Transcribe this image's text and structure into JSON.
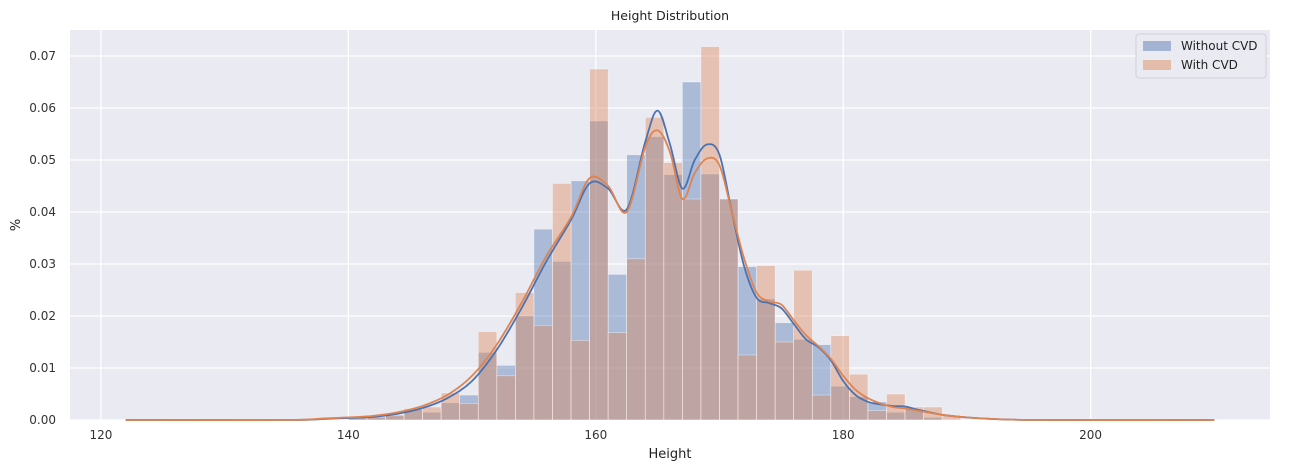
{
  "chart_data": {
    "type": "histogram",
    "title": "Height Distribution",
    "xlabel": "Height",
    "ylabel": "%",
    "xlim": [
      117.5,
      214.5
    ],
    "ylim": [
      0,
      0.075
    ],
    "xticks": [
      120,
      140,
      160,
      180,
      200
    ],
    "xtick_labels": [
      "120",
      "140",
      "160",
      "180",
      "200"
    ],
    "yticks": [
      0.0,
      0.01,
      0.02,
      0.03,
      0.04,
      0.05,
      0.06,
      0.07
    ],
    "ytick_labels": [
      "0.00",
      "0.01",
      "0.02",
      "0.03",
      "0.04",
      "0.05",
      "0.06",
      "0.07"
    ],
    "grid": true,
    "background_color": "#eaeaf2",
    "legend": {
      "position": "top-right"
    },
    "series": [
      {
        "name": "Without CVD",
        "color": "#4c72b0",
        "bars": [
          [
            140.0,
            141.5,
            0.0004
          ],
          [
            141.5,
            143.0,
            0.0005
          ],
          [
            143.0,
            144.5,
            0.0008
          ],
          [
            144.5,
            146.0,
            0.002
          ],
          [
            146.0,
            147.5,
            0.0015
          ],
          [
            147.5,
            149.0,
            0.0033
          ],
          [
            149.0,
            150.5,
            0.0048
          ],
          [
            150.5,
            152.0,
            0.013
          ],
          [
            152.0,
            153.5,
            0.0105
          ],
          [
            153.5,
            155.0,
            0.02
          ],
          [
            155.0,
            156.5,
            0.0367
          ],
          [
            156.5,
            158.0,
            0.0305
          ],
          [
            158.0,
            159.5,
            0.046
          ],
          [
            159.5,
            161.0,
            0.0575
          ],
          [
            161.0,
            162.5,
            0.028
          ],
          [
            162.5,
            164.0,
            0.051
          ],
          [
            164.0,
            165.5,
            0.0545
          ],
          [
            165.5,
            167.0,
            0.0472
          ],
          [
            167.0,
            168.5,
            0.065
          ],
          [
            168.5,
            170.0,
            0.0473
          ],
          [
            170.0,
            171.5,
            0.0425
          ],
          [
            171.5,
            173.0,
            0.0295
          ],
          [
            173.0,
            174.5,
            0.0233
          ],
          [
            174.5,
            176.0,
            0.0187
          ],
          [
            176.0,
            177.5,
            0.0155
          ],
          [
            177.5,
            179.0,
            0.0145
          ],
          [
            179.0,
            180.5,
            0.0065
          ],
          [
            180.5,
            182.0,
            0.0045
          ],
          [
            182.0,
            183.5,
            0.0035
          ],
          [
            183.5,
            185.0,
            0.0015
          ],
          [
            185.0,
            186.5,
            0.002
          ],
          [
            186.5,
            188.0,
            0.0005
          ]
        ],
        "kde": [
          [
            122,
            0.0
          ],
          [
            135,
            0.0
          ],
          [
            138,
            0.0002
          ],
          [
            140,
            0.0004
          ],
          [
            142,
            0.0006
          ],
          [
            144,
            0.0012
          ],
          [
            146,
            0.0023
          ],
          [
            148,
            0.0042
          ],
          [
            150,
            0.0075
          ],
          [
            152,
            0.0135
          ],
          [
            154,
            0.0215
          ],
          [
            156,
            0.0305
          ],
          [
            158,
            0.0385
          ],
          [
            159.5,
            0.0455
          ],
          [
            161,
            0.0445
          ],
          [
            162.5,
            0.0405
          ],
          [
            164,
            0.0535
          ],
          [
            165,
            0.0595
          ],
          [
            166,
            0.053
          ],
          [
            167,
            0.0445
          ],
          [
            168,
            0.05
          ],
          [
            169,
            0.053
          ],
          [
            170,
            0.051
          ],
          [
            171,
            0.04
          ],
          [
            172,
            0.0295
          ],
          [
            173,
            0.0235
          ],
          [
            174,
            0.0225
          ],
          [
            175,
            0.0215
          ],
          [
            176,
            0.0185
          ],
          [
            177,
            0.0155
          ],
          [
            178,
            0.014
          ],
          [
            179,
            0.0115
          ],
          [
            180,
            0.0075
          ],
          [
            181,
            0.0048
          ],
          [
            182,
            0.0035
          ],
          [
            183,
            0.003
          ],
          [
            184,
            0.0027
          ],
          [
            185,
            0.0026
          ],
          [
            186,
            0.002
          ],
          [
            188,
            0.001
          ],
          [
            190,
            0.0005
          ],
          [
            192,
            0.0002
          ],
          [
            196,
            0.0
          ],
          [
            210,
            0.0
          ]
        ]
      },
      {
        "name": "With CVD",
        "color": "#dd8452",
        "bars": [
          [
            140.0,
            141.5,
            0.0006
          ],
          [
            141.5,
            143.0,
            0.0006
          ],
          [
            143.0,
            144.5,
            0.001
          ],
          [
            144.5,
            146.0,
            0.0022
          ],
          [
            146.0,
            147.5,
            0.0025
          ],
          [
            147.5,
            149.0,
            0.0052
          ],
          [
            149.0,
            150.5,
            0.0032
          ],
          [
            150.5,
            152.0,
            0.017
          ],
          [
            152.0,
            153.5,
            0.0085
          ],
          [
            153.5,
            155.0,
            0.0245
          ],
          [
            155.0,
            156.5,
            0.0182
          ],
          [
            156.5,
            158.0,
            0.0455
          ],
          [
            158.0,
            159.5,
            0.0153
          ],
          [
            159.5,
            161.0,
            0.0675
          ],
          [
            161.0,
            162.5,
            0.0168
          ],
          [
            162.5,
            164.0,
            0.031
          ],
          [
            164.0,
            165.5,
            0.0582
          ],
          [
            165.5,
            167.0,
            0.0495
          ],
          [
            167.0,
            168.5,
            0.0425
          ],
          [
            168.5,
            170.0,
            0.0718
          ],
          [
            170.0,
            171.5,
            0.0425
          ],
          [
            171.5,
            173.0,
            0.0125
          ],
          [
            173.0,
            174.5,
            0.0297
          ],
          [
            174.5,
            176.0,
            0.015
          ],
          [
            176.0,
            177.5,
            0.0288
          ],
          [
            177.5,
            179.0,
            0.0048
          ],
          [
            179.0,
            180.5,
            0.0162
          ],
          [
            180.5,
            182.0,
            0.0088
          ],
          [
            182.0,
            183.5,
            0.0018
          ],
          [
            183.5,
            185.0,
            0.005
          ],
          [
            185.0,
            186.5,
            0.0025
          ],
          [
            186.5,
            188.0,
            0.0025
          ],
          [
            188.0,
            189.5,
            0.0008
          ]
        ],
        "kde": [
          [
            122,
            0.0
          ],
          [
            135,
            0.0
          ],
          [
            138,
            0.0003
          ],
          [
            140,
            0.0005
          ],
          [
            142,
            0.0008
          ],
          [
            144,
            0.0015
          ],
          [
            146,
            0.0027
          ],
          [
            148,
            0.0048
          ],
          [
            150,
            0.0085
          ],
          [
            152,
            0.0145
          ],
          [
            154,
            0.0225
          ],
          [
            156,
            0.0315
          ],
          [
            158,
            0.039
          ],
          [
            159.5,
            0.0465
          ],
          [
            161,
            0.045
          ],
          [
            162.5,
            0.04
          ],
          [
            164,
            0.0525
          ],
          [
            165,
            0.0557
          ],
          [
            166,
            0.0515
          ],
          [
            167,
            0.0425
          ],
          [
            168,
            0.0475
          ],
          [
            169,
            0.0503
          ],
          [
            170,
            0.049
          ],
          [
            171,
            0.04
          ],
          [
            172,
            0.031
          ],
          [
            173,
            0.0245
          ],
          [
            174,
            0.0228
          ],
          [
            175,
            0.0222
          ],
          [
            176,
            0.0192
          ],
          [
            177,
            0.0163
          ],
          [
            178,
            0.0142
          ],
          [
            179,
            0.0118
          ],
          [
            180,
            0.0085
          ],
          [
            181,
            0.0058
          ],
          [
            182,
            0.0042
          ],
          [
            183,
            0.0032
          ],
          [
            184,
            0.0025
          ],
          [
            185,
            0.0022
          ],
          [
            186,
            0.0018
          ],
          [
            188,
            0.001
          ],
          [
            190,
            0.0005
          ],
          [
            192,
            0.0002
          ],
          [
            196,
            0.0
          ],
          [
            210,
            0.0
          ]
        ]
      }
    ]
  }
}
